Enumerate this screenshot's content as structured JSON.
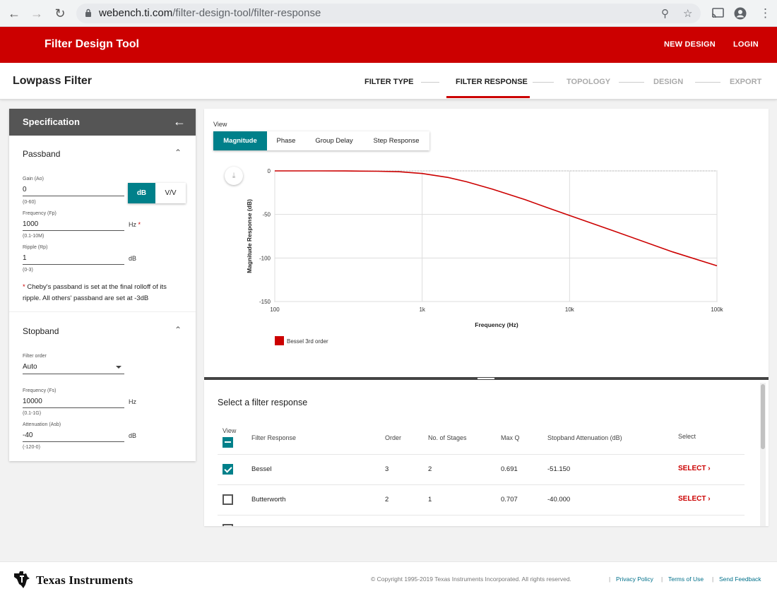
{
  "browser": {
    "url_host": "webench.ti.com",
    "url_path": "/filter-design-tool/filter-response"
  },
  "app": {
    "title": "Filter Design Tool",
    "new_design": "NEW DESIGN",
    "login": "LOGIN"
  },
  "steps": {
    "filter_title": "Lowpass Filter",
    "items": [
      "FILTER TYPE",
      "FILTER RESPONSE",
      "TOPOLOGY",
      "DESIGN",
      "EXPORT"
    ],
    "active": "FILTER RESPONSE"
  },
  "spec": {
    "title": "Specification",
    "passband": {
      "title": "Passband",
      "gain_label": "Gain (Ao)",
      "gain_value": "0",
      "gain_hint": "(0-60)",
      "unit_db": "dB",
      "unit_vv": "V/V",
      "freq_label": "Frequency (Fp)",
      "freq_value": "1000",
      "freq_hint": "(0.1-10M)",
      "freq_unit": "Hz",
      "required_mark": "*",
      "ripple_label": "Ripple (Rp)",
      "ripple_value": "1",
      "ripple_hint": "(0-3)",
      "ripple_unit": "dB",
      "note_mark": "*",
      "note_text": "Cheby's passband is set at the final rolloff of its ripple. All others' passband are set at -3dB"
    },
    "stopband": {
      "title": "Stopband",
      "order_label": "Filter order",
      "order_value": "Auto",
      "freq_label": "Frequency (Fs)",
      "freq_value": "10000",
      "freq_hint": "(0.1-1G)",
      "freq_unit": "Hz",
      "atten_label": "Attenuation (Asb)",
      "atten_value": "-40",
      "atten_hint": "(-120-0)",
      "atten_unit": "dB"
    }
  },
  "view": {
    "label": "View",
    "tabs": [
      "Magnitude",
      "Phase",
      "Group Delay",
      "Step Response"
    ],
    "active": "Magnitude"
  },
  "chart_data": {
    "type": "line",
    "xlabel": "Frequency (Hz)",
    "ylabel": "Magnitude Response (dB)",
    "x_scale": "log",
    "xlim": [
      100,
      100000
    ],
    "ylim": [
      -150,
      0
    ],
    "x_ticks": [
      {
        "value": 100,
        "label": "100"
      },
      {
        "value": 1000,
        "label": "1k"
      },
      {
        "value": 10000,
        "label": "10k"
      },
      {
        "value": 100000,
        "label": "100k"
      }
    ],
    "y_ticks": [
      {
        "value": 0,
        "label": "0"
      },
      {
        "value": -50,
        "label": "-50"
      },
      {
        "value": -100,
        "label": "-100"
      },
      {
        "value": -150,
        "label": "-150"
      }
    ],
    "grid": true,
    "legend_position": "bottom-left",
    "series": [
      {
        "name": "Bessel 3rd order",
        "color": "#cc0000",
        "points": [
          [
            100,
            0
          ],
          [
            200,
            0
          ],
          [
            300,
            -0.1
          ],
          [
            500,
            -0.4
          ],
          [
            700,
            -1.0
          ],
          [
            1000,
            -3.0
          ],
          [
            1500,
            -7.5
          ],
          [
            2000,
            -12.5
          ],
          [
            3000,
            -21
          ],
          [
            5000,
            -33
          ],
          [
            7000,
            -42
          ],
          [
            10000,
            -51.15
          ],
          [
            20000,
            -69
          ],
          [
            50000,
            -93
          ],
          [
            100000,
            -109
          ]
        ]
      }
    ]
  },
  "table": {
    "title": "Select a filter response",
    "headers": {
      "view": "View",
      "response": "Filter Response",
      "order": "Order",
      "stages": "No. of Stages",
      "maxq": "Max Q",
      "atten": "Stopband Attenuation (dB)",
      "select": "Select"
    },
    "rows": [
      {
        "checked": true,
        "response": "Bessel",
        "order": "3",
        "stages": "2",
        "maxq": "0.691",
        "atten": "-51.150",
        "select": "SELECT"
      },
      {
        "checked": false,
        "response": "Butterworth",
        "order": "2",
        "stages": "1",
        "maxq": "0.707",
        "atten": "-40.000",
        "select": "SELECT"
      }
    ]
  },
  "footer": {
    "brand": "Texas Instruments",
    "copyright": "© Copyright 1995-2019  Texas Instruments Incorporated.  All rights reserved.",
    "privacy": "Privacy Policy",
    "terms": "Terms of Use",
    "feedback": "Send Feedback",
    "separator": "|"
  },
  "colors": {
    "brand_red": "#cc0000",
    "accent_teal": "#00808a"
  },
  "icons": [
    "back-arrow-icon",
    "forward-arrow-icon",
    "reload-icon",
    "lock-icon",
    "zoom-icon",
    "star-icon",
    "cast-icon",
    "profile-icon",
    "menu-dots-icon",
    "arrow-left-icon",
    "chevron-up-icon",
    "dropdown-arrow-icon",
    "download-icon",
    "chevron-right-icon",
    "ti-logo-icon"
  ]
}
